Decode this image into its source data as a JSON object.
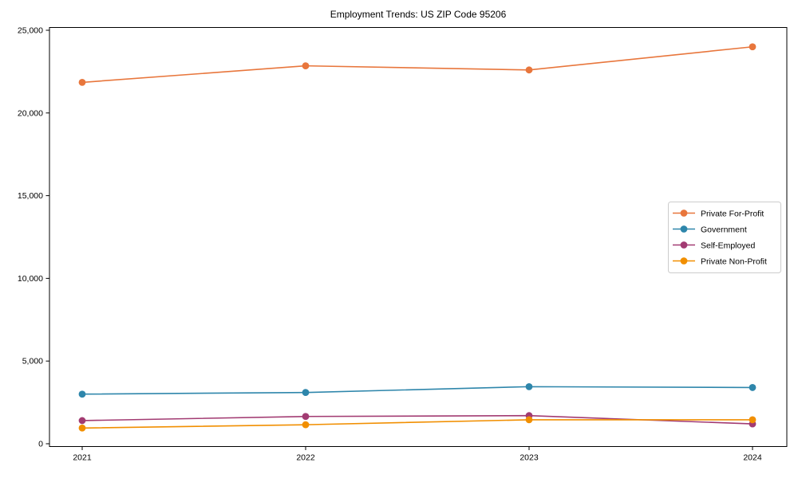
{
  "figure": {
    "background_color": "#ffffff",
    "axes_color": "#000000",
    "legend_border_color": "#cccccc"
  },
  "chart_data": {
    "type": "line",
    "title": "Employment Trends: US ZIP Code 95206",
    "xlabel": "",
    "ylabel": "",
    "x": [
      2021,
      2022,
      2023,
      2024
    ],
    "x_tick_labels": [
      "2021",
      "2022",
      "2023",
      "2024"
    ],
    "ylim": [
      0,
      25000
    ],
    "y_ticks": [
      0,
      5000,
      10000,
      15000,
      20000,
      25000
    ],
    "y_tick_labels": [
      "0",
      "5,000",
      "10,000",
      "15,000",
      "20,000",
      "25,000"
    ],
    "grid": false,
    "legend_position": "center right",
    "marker": "circle",
    "series": [
      {
        "name": "Private For-Profit",
        "color": "#e8763c",
        "values": [
          21850,
          22850,
          22600,
          24000
        ]
      },
      {
        "name": "Government",
        "color": "#2e86ab",
        "values": [
          3000,
          3100,
          3450,
          3400
        ]
      },
      {
        "name": "Self-Employed",
        "color": "#a23b72",
        "values": [
          1400,
          1650,
          1700,
          1200
        ]
      },
      {
        "name": "Private Non-Profit",
        "color": "#f18f01",
        "values": [
          950,
          1150,
          1450,
          1450
        ]
      }
    ]
  }
}
